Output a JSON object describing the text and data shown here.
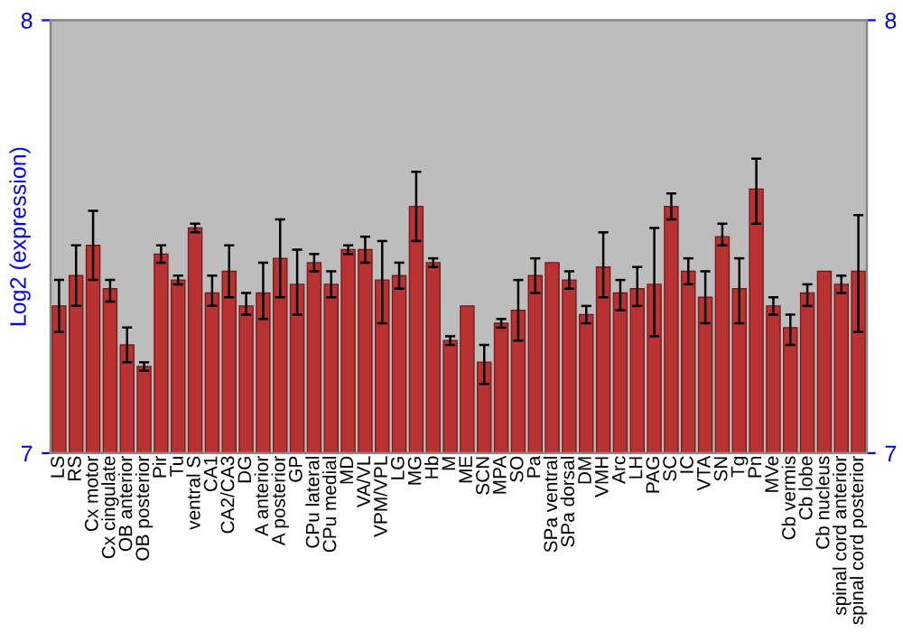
{
  "chart_data": {
    "type": "bar",
    "ylabel": "Log2 (expression)",
    "color": "#b83232",
    "categories": [
      "LS",
      "RS",
      "Cx motor",
      "Cx cingulate",
      "OB anterior",
      "OB posterior",
      "Pir",
      "Tu",
      "ventral S",
      "CA1",
      "CA2/CA3",
      "DG",
      "A anterior",
      "A posterior",
      "GP",
      "CPu lateral",
      "CPu medial",
      "MD",
      "VA/VL",
      "VPM/VPL",
      "LG",
      "MG",
      "Hb",
      "M",
      "ME",
      "SCN",
      "MPA",
      "SO",
      "Pa",
      "SPa ventral",
      "SPa dorsal",
      "DM",
      "VMH",
      "Arc",
      "LH",
      "PAG",
      "SC",
      "IC",
      "VTA",
      "SN",
      "Tg",
      "Pn",
      "MVe",
      "Cb vermis",
      "Cb lobe",
      "Cb nucleus",
      "spinal cord anterior",
      "spinal cord posterior"
    ],
    "values": [
      7.34,
      7.41,
      7.48,
      7.38,
      7.25,
      7.2,
      7.46,
      7.4,
      7.52,
      7.37,
      7.42,
      7.34,
      7.37,
      7.45,
      7.39,
      7.44,
      7.39,
      7.47,
      7.47,
      7.4,
      7.41,
      7.57,
      7.44,
      7.26,
      7.34,
      7.21,
      7.3,
      7.33,
      7.41,
      7.44,
      7.4,
      7.32,
      7.43,
      7.37,
      7.38,
      7.39,
      7.57,
      7.42,
      7.36,
      7.5,
      7.38,
      7.61,
      7.34,
      7.29,
      7.37,
      7.42,
      7.39,
      7.42
    ],
    "errors": [
      [
        7.28,
        7.4
      ],
      [
        7.34,
        7.48
      ],
      [
        7.4,
        7.56
      ],
      [
        7.35,
        7.4
      ],
      [
        7.21,
        7.29
      ],
      [
        7.19,
        7.21
      ],
      [
        7.44,
        7.48
      ],
      [
        7.39,
        7.41
      ],
      [
        7.51,
        7.53
      ],
      [
        7.34,
        7.41
      ],
      [
        7.36,
        7.48
      ],
      [
        7.32,
        7.37
      ],
      [
        7.31,
        7.44
      ],
      [
        7.36,
        7.54
      ],
      [
        7.32,
        7.47
      ],
      [
        7.42,
        7.46
      ],
      [
        7.36,
        7.42
      ],
      [
        7.46,
        7.48
      ],
      [
        7.44,
        7.5
      ],
      [
        7.3,
        7.49
      ],
      [
        7.38,
        7.44
      ],
      [
        7.49,
        7.65
      ],
      [
        7.43,
        7.45
      ],
      [
        7.25,
        7.27
      ],
      null,
      [
        7.16,
        7.25
      ],
      [
        7.29,
        7.31
      ],
      [
        7.26,
        7.4
      ],
      [
        7.37,
        7.45
      ],
      null,
      [
        7.38,
        7.42
      ],
      [
        7.3,
        7.34
      ],
      [
        7.36,
        7.51
      ],
      [
        7.33,
        7.4
      ],
      [
        7.34,
        7.43
      ],
      [
        7.27,
        7.52
      ],
      [
        7.54,
        7.6
      ],
      [
        7.39,
        7.45
      ],
      [
        7.3,
        7.42
      ],
      [
        7.48,
        7.53
      ],
      [
        7.3,
        7.45
      ],
      [
        7.53,
        7.68
      ],
      [
        7.32,
        7.36
      ],
      [
        7.25,
        7.32
      ],
      [
        7.34,
        7.39
      ],
      null,
      [
        7.37,
        7.41
      ],
      [
        7.28,
        7.55
      ]
    ],
    "ylim": [
      7,
      8
    ],
    "yticks": [
      7,
      8
    ],
    "y2lim": [
      7,
      8
    ],
    "y2ticks": [
      7,
      8
    ],
    "grid": false,
    "legend": false
  }
}
